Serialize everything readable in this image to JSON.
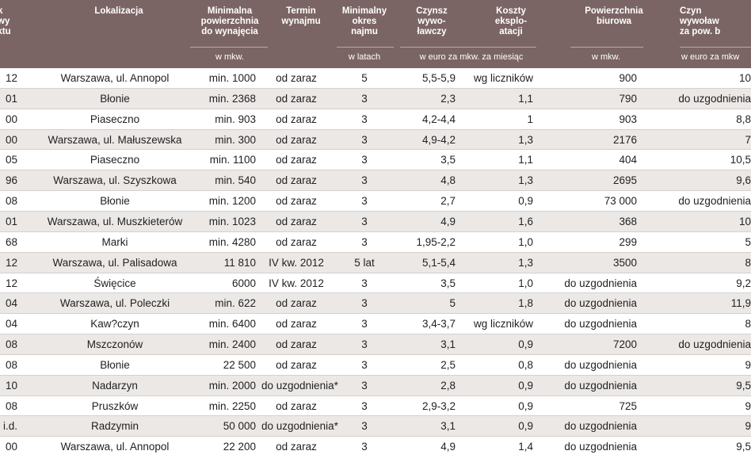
{
  "columns": [
    {
      "key": "rok",
      "header": "ok\nowy\nektu",
      "unit": ""
    },
    {
      "key": "lokalizacja",
      "header": "Lokalizacja",
      "unit": ""
    },
    {
      "key": "min_pow",
      "header": "Minimalna\npowierzchnia\ndo wynajęcia",
      "unit": "w mkw."
    },
    {
      "key": "termin",
      "header": "Termin\nwynajmu",
      "unit": ""
    },
    {
      "key": "okres",
      "header": "Minimalny\nokres\nnajmu",
      "unit": "w latach"
    },
    {
      "key": "czynsz",
      "header": "Czynsz\nwywo-\nławczy",
      "unit": ""
    },
    {
      "key": "koszty",
      "header": "Koszty\neksplo-\natacji",
      "unit": ""
    },
    {
      "key": "biurowa",
      "header": "Powierzchnia\nbiurowa",
      "unit": "w mkw."
    },
    {
      "key": "czynsz_b",
      "header": "Czyn\nwywoław\nza pow. b",
      "unit": "w euro za mkw"
    }
  ],
  "shared_unit": "w euro za mkw. za miesiąc",
  "rows": [
    [
      "12",
      "Warszawa, ul. Annopol",
      "min.  1000",
      "od zaraz",
      "5",
      "5,5-5,9",
      "wg liczników",
      "900",
      "10"
    ],
    [
      "01",
      "Błonie",
      "min. 2368",
      "od zaraz",
      "3",
      "2,3",
      "1,1",
      "790",
      "do uzgodnienia"
    ],
    [
      "00",
      "Piaseczno",
      "min. 903",
      "od zaraz",
      "3",
      "4,2-4,4",
      "1",
      "903",
      "8,8"
    ],
    [
      "00",
      "Warszawa, ul. Małuszewska",
      "min. 300",
      "od zaraz",
      "3",
      "4,9-4,2",
      "1,3",
      "2176",
      "7"
    ],
    [
      "05",
      "Piaseczno",
      "min. 1100",
      "od zaraz",
      "3",
      "3,5",
      "1,1",
      "404",
      "10,5"
    ],
    [
      "96",
      "Warszawa, ul. Szyszkowa",
      "min. 540",
      "od zaraz",
      "3",
      "4,8",
      "1,3",
      "2695",
      "9,6"
    ],
    [
      "08",
      "Błonie",
      "min. 1200",
      "od zaraz",
      "3",
      "2,7",
      "0,9",
      "73  000",
      "do uzgodnienia"
    ],
    [
      "01",
      "Warszawa, ul. Muszkieterów",
      "min. 1023",
      "od zaraz",
      "3",
      "4,9",
      "1,6",
      "368",
      "10"
    ],
    [
      "68",
      "Marki",
      "min. 4280",
      "od zaraz",
      "3",
      "1,95-2,2",
      "1,0",
      "299",
      "5"
    ],
    [
      "12",
      "Warszawa, ul. Palisadowa",
      "11  810",
      "IV kw. 2012",
      "5 lat",
      "5,1-5,4",
      "1,3",
      "3500",
      "8"
    ],
    [
      "12",
      "Święcice",
      "6000",
      "IV kw. 2012",
      "3",
      "3,5",
      "1,0",
      "do uzgodnienia",
      "9,2"
    ],
    [
      "04",
      "Warszawa, ul. Poleczki",
      "min. 622",
      "od zaraz",
      "3",
      "5",
      "1,8",
      "do uzgodnienia",
      "11,9"
    ],
    [
      "04",
      "Kaw?czyn",
      "min. 6400",
      "od zaraz",
      "3",
      "3,4-3,7",
      "wg liczników",
      "do uzgodnienia",
      "8"
    ],
    [
      "08",
      "Mszczonów",
      "min. 2400",
      "od zaraz",
      "3",
      "3,1",
      "0,9",
      "7200",
      "do uzgodnienia"
    ],
    [
      "08",
      "Błonie",
      "22  500",
      "od zaraz",
      "3",
      "2,5",
      "0,8",
      "do uzgodnienia",
      "9"
    ],
    [
      "10",
      "Nadarzyn",
      "min. 2000",
      "do uzgodnienia*",
      "3",
      "2,8",
      "0,9",
      "do uzgodnienia",
      "9,5"
    ],
    [
      "08",
      "Pruszków",
      "min.  2250",
      "od zaraz",
      "3",
      "2,9-3,2",
      "0,9",
      "725",
      "9"
    ],
    [
      "i.d.",
      "Radzymin",
      "50  000",
      "do uzgodnienia*",
      "3",
      "3,1",
      "0,9",
      "do uzgodnienia",
      "9"
    ],
    [
      "00",
      "Warszawa, ul. Annopol",
      "22  200",
      "od zaraz",
      "3",
      "4,9",
      "1,4",
      "do uzgodnienia",
      "9,5"
    ]
  ]
}
